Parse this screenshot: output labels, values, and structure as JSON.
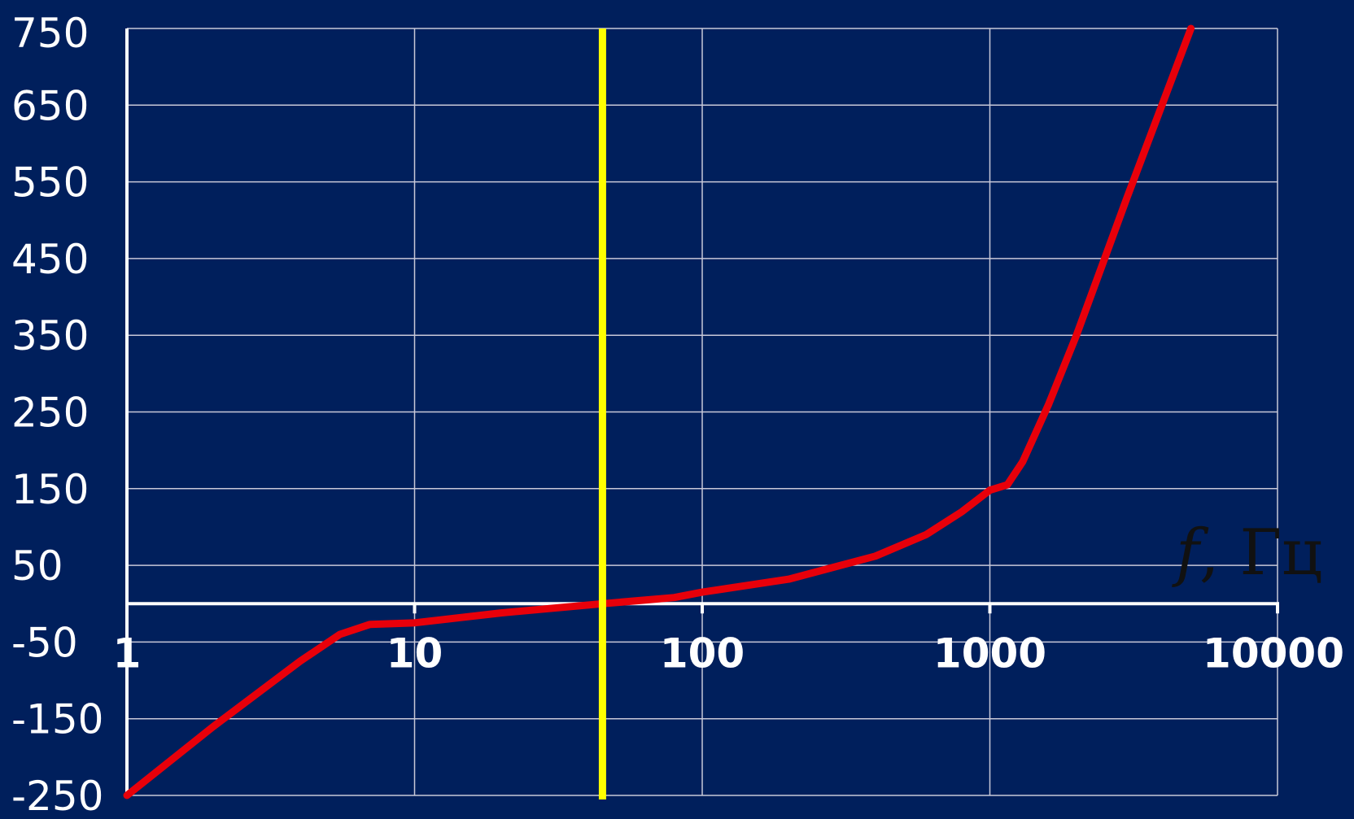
{
  "chart_data": {
    "type": "line",
    "x_scale": "log",
    "xlim": [
      1,
      10000
    ],
    "ylim": [
      -250,
      750
    ],
    "x_ticks": [
      "1",
      "10",
      "100",
      "1000",
      "10000"
    ],
    "y_ticks": [
      "750",
      "650",
      "550",
      "450",
      "350",
      "250",
      "150",
      "50",
      "-50",
      "-150",
      "-250"
    ],
    "x_tick_values": [
      1,
      10,
      100,
      1000,
      10000
    ],
    "y_tick_values": [
      750,
      650,
      550,
      450,
      350,
      250,
      150,
      50,
      -50,
      -150,
      -250
    ],
    "xlabel_symbol": "f",
    "xlabel_unit": ", Гц",
    "grid": true,
    "series": [
      {
        "color": "#e8000a",
        "points": [
          [
            1,
            -250
          ],
          [
            2,
            -160
          ],
          [
            4,
            -75
          ],
          [
            5.5,
            -40
          ],
          [
            7,
            -27
          ],
          [
            10,
            -25
          ],
          [
            20,
            -12
          ],
          [
            45,
            0
          ],
          [
            80,
            8
          ],
          [
            100,
            15
          ],
          [
            200,
            32
          ],
          [
            400,
            62
          ],
          [
            600,
            90
          ],
          [
            800,
            120
          ],
          [
            1000,
            148
          ],
          [
            1150,
            155
          ],
          [
            1300,
            185
          ],
          [
            1600,
            260
          ],
          [
            2000,
            350
          ],
          [
            3000,
            530
          ],
          [
            5000,
            750
          ]
        ]
      }
    ],
    "marker_line": {
      "x": 45,
      "color": "#ffff00"
    },
    "colors": {
      "background": "#001f5c",
      "axis": "#ffffff",
      "grid": "#c8c8d8",
      "xlabel": "#111111"
    }
  }
}
